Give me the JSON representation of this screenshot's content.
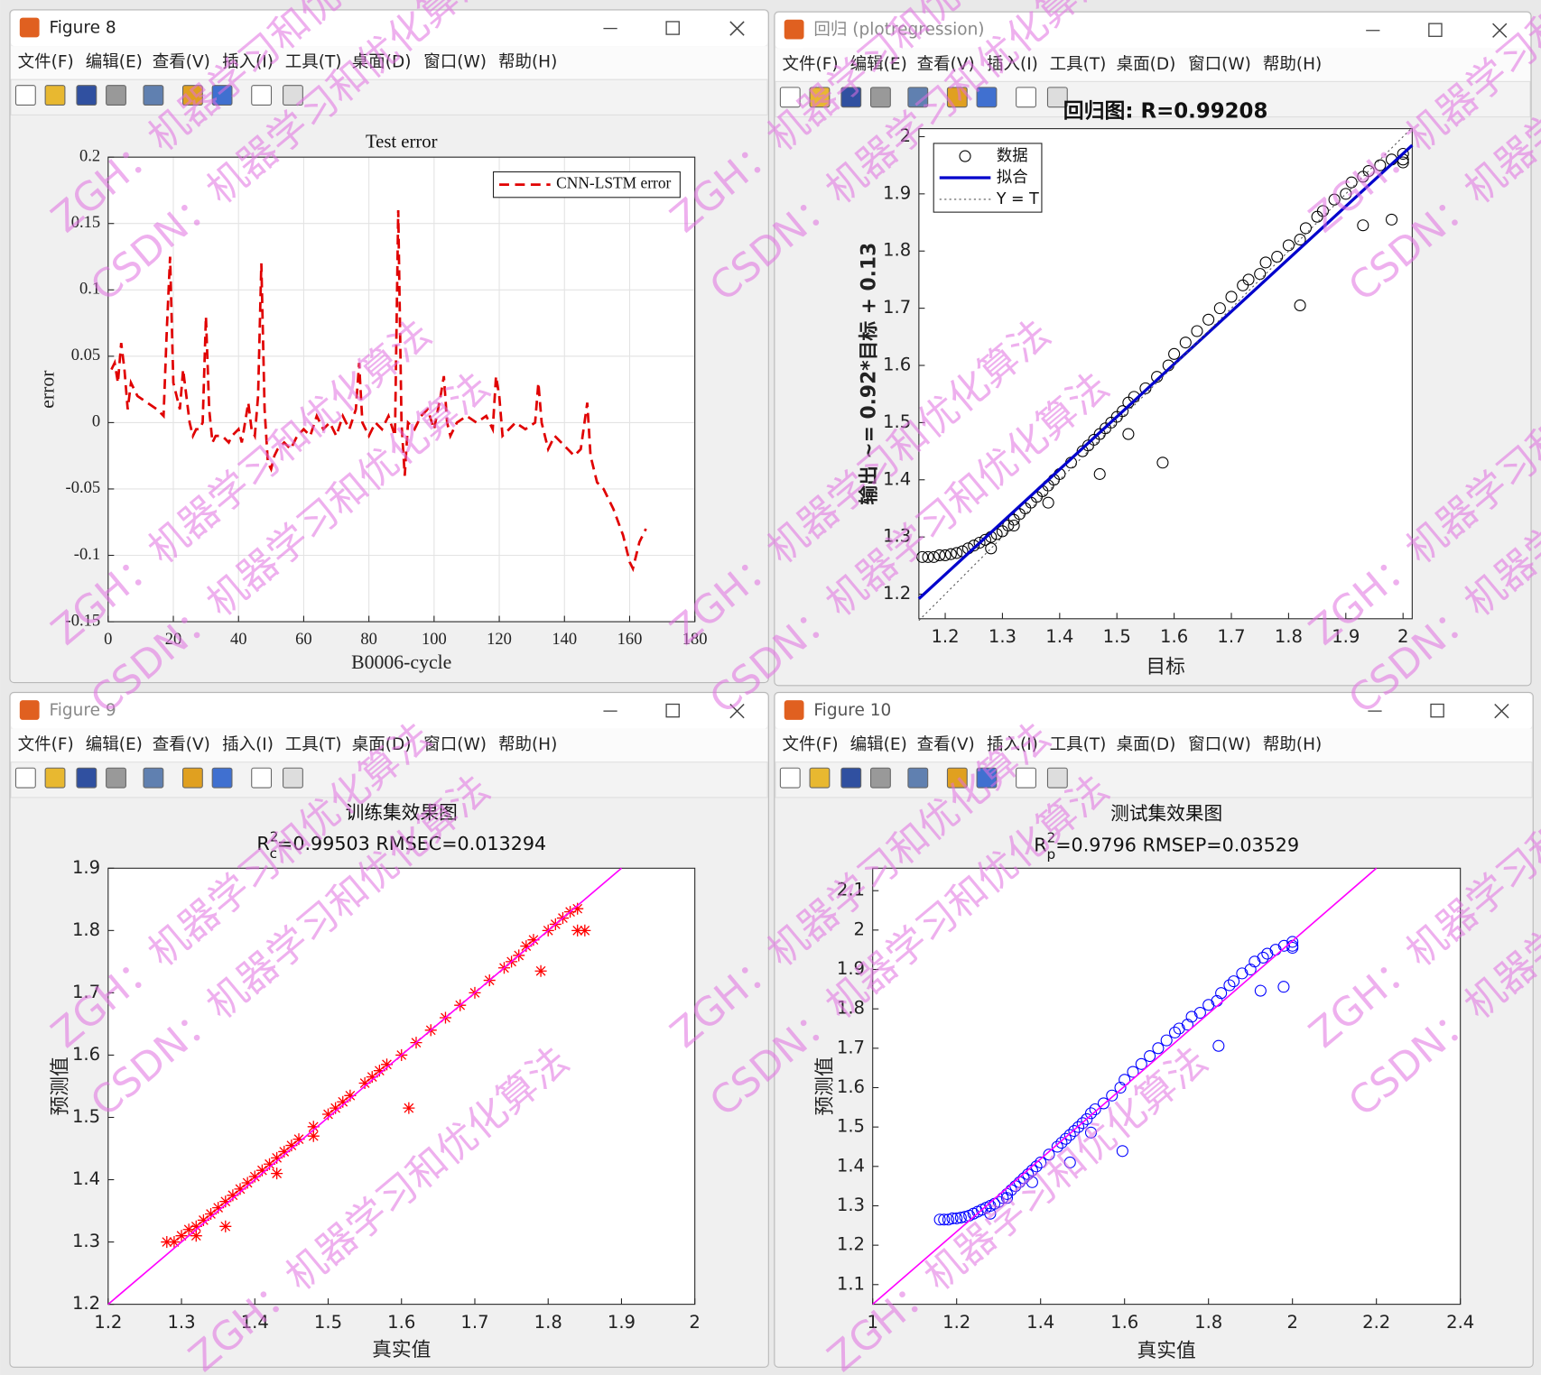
{
  "windows": [
    {
      "title": "Figure 8"
    },
    {
      "title": "回归 (plotregression)"
    },
    {
      "title": "Figure 9"
    },
    {
      "title": "Figure 10"
    }
  ],
  "menu": [
    "文件(F)",
    "编辑(E)",
    "查看(V)",
    "插入(I)",
    "工具(T)",
    "桌面(D)",
    "窗口(W)",
    "帮助(H)"
  ],
  "watermarks": [
    "ZGH：机器学习和优化算法",
    "CSDN：机器学习和优化算法"
  ],
  "chart_data": [
    {
      "type": "line",
      "title": "Test error",
      "xlabel": "B0006-cycle",
      "ylabel": "error",
      "x": [
        1,
        2,
        3,
        4,
        5,
        6,
        7,
        8,
        9,
        12,
        15,
        17,
        18,
        19,
        20,
        21,
        22,
        23,
        24,
        25,
        26,
        27,
        28,
        29,
        30,
        31,
        32,
        33,
        35,
        37,
        38,
        40,
        41,
        43,
        44,
        45,
        46,
        47,
        48,
        49,
        50,
        51,
        52,
        54,
        56,
        58,
        60,
        62,
        64,
        66,
        68,
        70,
        72,
        74,
        76,
        77,
        78,
        80,
        82,
        84,
        86,
        88,
        89,
        90,
        91,
        92,
        94,
        96,
        98,
        100,
        102,
        103,
        104,
        105,
        107,
        110,
        113,
        116,
        118,
        119,
        120,
        121,
        123,
        125,
        128,
        131,
        132,
        133,
        135,
        137,
        139,
        141,
        143,
        145,
        147,
        148,
        150,
        152,
        155,
        158,
        160,
        161,
        163,
        165
      ],
      "series": [
        {
          "name": "CNN-LSTM error",
          "color": "#e00000",
          "style": "dashed",
          "values": [
            0.04,
            0.045,
            0.03,
            0.06,
            0.04,
            0.01,
            0.03,
            0.025,
            0.02,
            0.015,
            0.01,
            0.005,
            0.07,
            0.125,
            0.03,
            0.02,
            0.01,
            0.04,
            0.02,
            0.0,
            -0.01,
            -0.005,
            -0.005,
            0.0,
            0.08,
            0.01,
            -0.015,
            -0.01,
            -0.01,
            -0.015,
            -0.01,
            -0.005,
            -0.015,
            0.015,
            -0.005,
            -0.01,
            0.02,
            0.12,
            0.01,
            -0.03,
            -0.035,
            -0.025,
            -0.02,
            -0.015,
            -0.02,
            -0.01,
            -0.005,
            -0.01,
            0.005,
            -0.005,
            0.0,
            -0.01,
            0.005,
            -0.005,
            0.01,
            0.045,
            0.0,
            -0.01,
            0.0,
            -0.005,
            0.005,
            -0.01,
            0.16,
            0.0,
            -0.04,
            0.0,
            -0.005,
            0.005,
            0.01,
            -0.005,
            0.02,
            0.035,
            0.0,
            -0.01,
            0.0,
            0.005,
            0.0,
            0.005,
            -0.005,
            0.035,
            0.02,
            -0.01,
            -0.005,
            0.0,
            -0.005,
            0.0,
            0.03,
            0.0,
            -0.02,
            -0.01,
            -0.015,
            -0.02,
            -0.025,
            -0.02,
            0.015,
            -0.025,
            -0.045,
            -0.05,
            -0.065,
            -0.085,
            -0.105,
            -0.11,
            -0.09,
            -0.08
          ]
        }
      ],
      "xlim": [
        0,
        180
      ],
      "ylim": [
        -0.15,
        0.2
      ],
      "xticks": [
        0,
        20,
        40,
        60,
        80,
        100,
        120,
        140,
        160,
        180
      ],
      "yticks": [
        -0.15,
        -0.1,
        -0.05,
        0,
        0.05,
        0.1,
        0.15,
        0.2
      ],
      "grid": true,
      "legend": "upper right"
    },
    {
      "type": "scatter",
      "title": "回归图: R=0.99208",
      "xlabel": "目标",
      "ylabel": "输出 ~= 0.92*目标 + 0.13",
      "x": [
        1.16,
        1.17,
        1.18,
        1.19,
        1.2,
        1.21,
        1.22,
        1.23,
        1.24,
        1.25,
        1.26,
        1.27,
        1.28,
        1.29,
        1.3,
        1.31,
        1.32,
        1.33,
        1.34,
        1.35,
        1.36,
        1.37,
        1.38,
        1.39,
        1.4,
        1.42,
        1.44,
        1.45,
        1.46,
        1.47,
        1.48,
        1.49,
        1.5,
        1.51,
        1.52,
        1.53,
        1.55,
        1.57,
        1.59,
        1.6,
        1.62,
        1.64,
        1.66,
        1.68,
        1.7,
        1.72,
        1.73,
        1.75,
        1.76,
        1.78,
        1.8,
        1.82,
        1.83,
        1.85,
        1.86,
        1.88,
        1.9,
        1.91,
        1.93,
        1.94,
        1.96,
        1.98,
        2.0,
        2.0,
        2.0,
        1.28,
        1.32,
        1.38,
        1.47,
        1.52,
        1.58,
        1.82,
        1.93,
        1.98
      ],
      "series": [
        {
          "name": "数据",
          "color": "#000000",
          "marker": "o",
          "values": [
            1.265,
            1.265,
            1.265,
            1.268,
            1.268,
            1.27,
            1.272,
            1.275,
            1.28,
            1.285,
            1.29,
            1.295,
            1.3,
            1.305,
            1.31,
            1.32,
            1.33,
            1.34,
            1.35,
            1.36,
            1.37,
            1.38,
            1.39,
            1.4,
            1.41,
            1.43,
            1.45,
            1.46,
            1.47,
            1.48,
            1.49,
            1.5,
            1.51,
            1.52,
            1.535,
            1.545,
            1.56,
            1.58,
            1.6,
            1.62,
            1.64,
            1.66,
            1.68,
            1.7,
            1.72,
            1.74,
            1.75,
            1.76,
            1.78,
            1.79,
            1.81,
            1.82,
            1.84,
            1.86,
            1.87,
            1.89,
            1.9,
            1.92,
            1.93,
            1.94,
            1.95,
            1.96,
            1.97,
            1.96,
            1.955,
            1.28,
            1.32,
            1.36,
            1.41,
            1.48,
            1.43,
            1.705,
            1.845,
            1.855
          ]
        },
        {
          "name": "拟合",
          "color": "#0000cc",
          "x": [
            1.154,
            2.016
          ],
          "values": [
            1.192,
            1.985
          ]
        },
        {
          "name": "Y = T",
          "color": "#555555",
          "style": "dotted",
          "x": [
            1.154,
            2.016
          ],
          "values": [
            1.154,
            2.016
          ]
        }
      ],
      "xlim": [
        1.154,
        2.016
      ],
      "ylim": [
        1.157,
        2.014
      ],
      "xticks": [
        1.2,
        1.3,
        1.4,
        1.5,
        1.6,
        1.7,
        1.8,
        1.9,
        2
      ],
      "yticks": [
        1.2,
        1.3,
        1.4,
        1.5,
        1.6,
        1.7,
        1.8,
        1.9,
        2
      ],
      "legend": "upper left"
    },
    {
      "type": "scatter",
      "title": "训练集效果图",
      "subtitle": {
        "base": "R",
        "sup": "2",
        "sub": "c",
        "text": "=0.99503  RMSEC=0.013294"
      },
      "xlabel": "真实值",
      "ylabel": "预测值",
      "x": [
        1.28,
        1.29,
        1.3,
        1.31,
        1.32,
        1.33,
        1.34,
        1.35,
        1.36,
        1.37,
        1.38,
        1.39,
        1.4,
        1.41,
        1.42,
        1.43,
        1.44,
        1.45,
        1.46,
        1.48,
        1.5,
        1.51,
        1.52,
        1.53,
        1.55,
        1.56,
        1.57,
        1.58,
        1.6,
        1.62,
        1.64,
        1.66,
        1.68,
        1.7,
        1.72,
        1.74,
        1.75,
        1.76,
        1.77,
        1.78,
        1.8,
        1.81,
        1.82,
        1.83,
        1.84,
        1.61,
        1.79,
        1.36,
        1.32,
        1.43,
        1.84,
        1.85,
        1.48
      ],
      "series": [
        {
          "color": "#ff0000",
          "marker": "*",
          "values": [
            1.3,
            1.3,
            1.31,
            1.32,
            1.325,
            1.335,
            1.345,
            1.355,
            1.365,
            1.375,
            1.385,
            1.395,
            1.405,
            1.415,
            1.425,
            1.435,
            1.445,
            1.455,
            1.465,
            1.485,
            1.505,
            1.515,
            1.525,
            1.535,
            1.555,
            1.565,
            1.575,
            1.585,
            1.6,
            1.62,
            1.64,
            1.66,
            1.68,
            1.7,
            1.72,
            1.74,
            1.75,
            1.76,
            1.775,
            1.785,
            1.8,
            1.81,
            1.82,
            1.83,
            1.835,
            1.515,
            1.735,
            1.325,
            1.31,
            1.41,
            1.8,
            1.8,
            1.47
          ]
        },
        {
          "color": "#ff00ff",
          "x": [
            1.2,
            1.9
          ],
          "values": [
            1.2,
            1.9
          ]
        }
      ],
      "xlim": [
        1.2,
        2
      ],
      "ylim": [
        1.2,
        1.9
      ],
      "xticks": [
        1.2,
        1.3,
        1.4,
        1.5,
        1.6,
        1.7,
        1.8,
        1.9,
        2
      ],
      "yticks": [
        1.2,
        1.3,
        1.4,
        1.5,
        1.6,
        1.7,
        1.8,
        1.9
      ]
    },
    {
      "type": "scatter",
      "title": "测试集效果图",
      "subtitle": {
        "base": "R",
        "sup": "2",
        "sub": "p",
        "text": "=0.9796  RMSEP=0.03529"
      },
      "xlabel": "真实值",
      "ylabel": "预测值",
      "x": [
        1.16,
        1.17,
        1.18,
        1.19,
        1.2,
        1.21,
        1.22,
        1.23,
        1.24,
        1.25,
        1.26,
        1.27,
        1.28,
        1.29,
        1.3,
        1.31,
        1.32,
        1.33,
        1.34,
        1.35,
        1.36,
        1.37,
        1.38,
        1.39,
        1.4,
        1.42,
        1.44,
        1.45,
        1.46,
        1.47,
        1.48,
        1.49,
        1.5,
        1.51,
        1.52,
        1.53,
        1.55,
        1.57,
        1.59,
        1.6,
        1.62,
        1.64,
        1.66,
        1.68,
        1.7,
        1.72,
        1.73,
        1.75,
        1.76,
        1.78,
        1.8,
        1.82,
        1.83,
        1.85,
        1.86,
        1.88,
        1.9,
        1.91,
        1.93,
        1.94,
        1.96,
        1.98,
        2.0,
        2.0,
        2.0,
        1.28,
        1.32,
        1.38,
        1.47,
        1.52,
        1.595,
        1.824,
        1.924,
        1.979
      ],
      "series": [
        {
          "color": "#0000ff",
          "marker": "o",
          "values": [
            1.265,
            1.265,
            1.265,
            1.268,
            1.268,
            1.27,
            1.272,
            1.275,
            1.28,
            1.285,
            1.29,
            1.295,
            1.3,
            1.305,
            1.31,
            1.32,
            1.33,
            1.34,
            1.35,
            1.36,
            1.37,
            1.38,
            1.39,
            1.4,
            1.41,
            1.43,
            1.45,
            1.46,
            1.47,
            1.48,
            1.49,
            1.5,
            1.51,
            1.52,
            1.535,
            1.545,
            1.56,
            1.58,
            1.6,
            1.62,
            1.64,
            1.66,
            1.68,
            1.7,
            1.72,
            1.74,
            1.75,
            1.76,
            1.78,
            1.79,
            1.81,
            1.82,
            1.84,
            1.86,
            1.87,
            1.89,
            1.9,
            1.92,
            1.93,
            1.94,
            1.95,
            1.96,
            1.97,
            1.96,
            1.955,
            1.28,
            1.32,
            1.36,
            1.41,
            1.486,
            1.439,
            1.706,
            1.846,
            1.856
          ]
        },
        {
          "color": "#ff00ff",
          "x": [
            1,
            2.2
          ],
          "values": [
            1.05,
            2.157
          ]
        }
      ],
      "xlim": [
        1,
        2.4
      ],
      "ylim": [
        1.05,
        2.157
      ],
      "xticks": [
        1,
        1.2,
        1.4,
        1.6,
        1.8,
        2,
        2.2,
        2.4
      ],
      "yticks": [
        1.1,
        1.2,
        1.3,
        1.4,
        1.5,
        1.6,
        1.7,
        1.8,
        1.9,
        2,
        2.1
      ]
    }
  ]
}
